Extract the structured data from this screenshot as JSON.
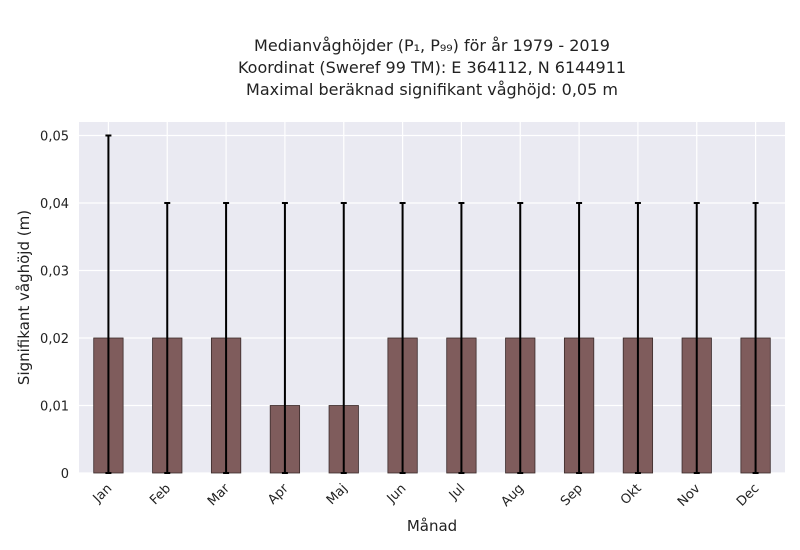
{
  "chart_data": {
    "type": "bar",
    "title_lines": [
      "Medianvåghöjder (P₁, P₉₉) för år 1979 - 2019",
      "Koordinat (Sweref 99 TM): E 364112, N 6144911",
      "Maximal beräknad signifikant våghöjd: 0,05 m"
    ],
    "xlabel": "Månad",
    "ylabel": "Signifikant våghöjd (m)",
    "categories": [
      "Jan",
      "Feb",
      "Mar",
      "Apr",
      "Maj",
      "Jun",
      "Jul",
      "Aug",
      "Sep",
      "Okt",
      "Nov",
      "Dec"
    ],
    "values": [
      0.02,
      0.02,
      0.02,
      0.01,
      0.01,
      0.02,
      0.02,
      0.02,
      0.02,
      0.02,
      0.02,
      0.02
    ],
    "error_low": [
      0,
      0,
      0,
      0,
      0,
      0,
      0,
      0,
      0,
      0,
      0,
      0
    ],
    "error_high": [
      0.05,
      0.04,
      0.04,
      0.04,
      0.04,
      0.04,
      0.04,
      0.04,
      0.04,
      0.04,
      0.04,
      0.04
    ],
    "ylim": [
      0,
      0.052
    ],
    "yticks": [
      0,
      0.01,
      0.02,
      0.03,
      0.04,
      0.05
    ],
    "ytick_labels": [
      "0",
      "0,01",
      "0,02",
      "0,03",
      "0,04",
      "0,05"
    ],
    "grid": true,
    "colors": {
      "bar": "#7f5c5c",
      "bar_edge": "#3a2a2a",
      "error": "#000000",
      "plot_bg": "#eaeaf2",
      "grid": "#ffffff"
    }
  }
}
